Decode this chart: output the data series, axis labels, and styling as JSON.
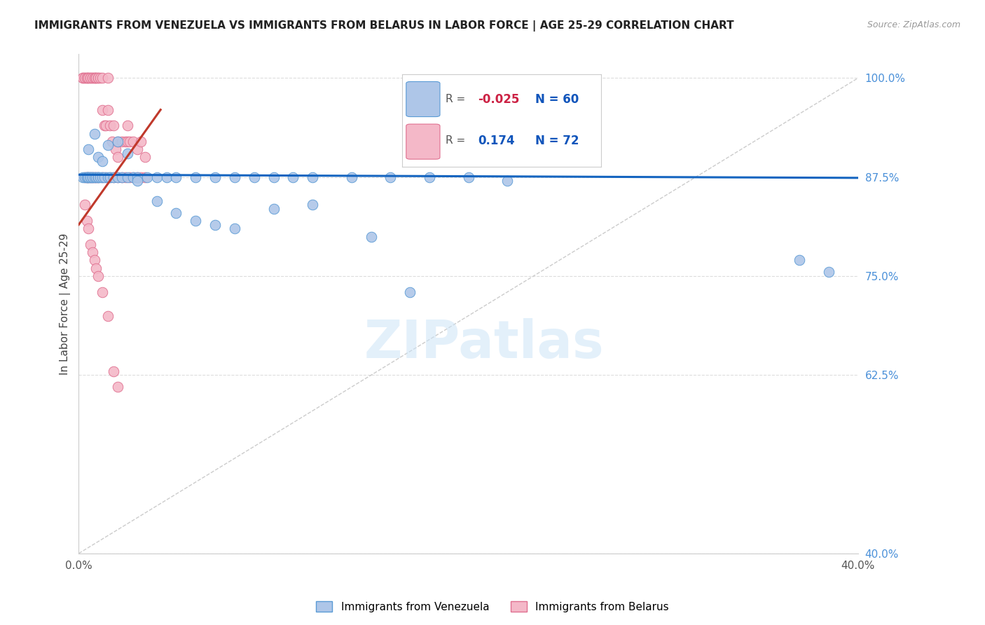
{
  "title": "IMMIGRANTS FROM VENEZUELA VS IMMIGRANTS FROM BELARUS IN LABOR FORCE | AGE 25-29 CORRELATION CHART",
  "source": "Source: ZipAtlas.com",
  "ylabel": "In Labor Force | Age 25-29",
  "xlim": [
    0.0,
    0.4
  ],
  "ylim": [
    0.4,
    1.03
  ],
  "plot_ylim": [
    0.4,
    1.03
  ],
  "xticks": [
    0.0,
    0.1,
    0.2,
    0.3,
    0.4
  ],
  "xtick_labels": [
    "0.0%",
    "",
    "",
    "",
    "40.0%"
  ],
  "yticks": [
    0.4,
    0.625,
    0.75,
    0.875,
    1.0
  ],
  "ytick_labels": [
    "40.0%",
    "62.5%",
    "75.0%",
    "87.5%",
    "100.0%"
  ],
  "watermark": "ZIPatlas",
  "venezuela_color": "#aec6e8",
  "venezuela_edge": "#5b9bd5",
  "belarus_color": "#f4b8c8",
  "belarus_edge": "#e07090",
  "blue_line_color": "#1565c0",
  "red_line_color": "#c0392b",
  "diagonal_color": "#cccccc",
  "grid_color": "#dddddd",
  "right_tick_color": "#4a90d9",
  "venezuela_x": [
    0.002,
    0.003,
    0.004,
    0.004,
    0.005,
    0.005,
    0.006,
    0.006,
    0.007,
    0.007,
    0.008,
    0.009,
    0.01,
    0.01,
    0.011,
    0.012,
    0.013,
    0.015,
    0.016,
    0.018,
    0.02,
    0.022,
    0.025,
    0.028,
    0.03,
    0.035,
    0.04,
    0.045,
    0.05,
    0.06,
    0.07,
    0.08,
    0.09,
    0.1,
    0.11,
    0.12,
    0.14,
    0.16,
    0.18,
    0.2,
    0.005,
    0.008,
    0.01,
    0.012,
    0.015,
    0.02,
    0.025,
    0.03,
    0.04,
    0.05,
    0.06,
    0.07,
    0.08,
    0.1,
    0.12,
    0.15,
    0.17,
    0.22,
    0.37,
    0.385
  ],
  "venezuela_y": [
    0.875,
    0.875,
    0.875,
    0.875,
    0.875,
    0.875,
    0.875,
    0.875,
    0.875,
    0.875,
    0.875,
    0.875,
    0.875,
    0.875,
    0.875,
    0.875,
    0.875,
    0.875,
    0.875,
    0.875,
    0.875,
    0.875,
    0.875,
    0.875,
    0.875,
    0.875,
    0.875,
    0.875,
    0.875,
    0.875,
    0.875,
    0.875,
    0.875,
    0.875,
    0.875,
    0.875,
    0.875,
    0.875,
    0.875,
    0.875,
    0.91,
    0.93,
    0.9,
    0.895,
    0.915,
    0.92,
    0.905,
    0.87,
    0.845,
    0.83,
    0.82,
    0.815,
    0.81,
    0.835,
    0.84,
    0.8,
    0.73,
    0.87,
    0.77,
    0.755
  ],
  "belarus_x": [
    0.002,
    0.002,
    0.003,
    0.003,
    0.004,
    0.004,
    0.005,
    0.005,
    0.006,
    0.006,
    0.007,
    0.007,
    0.008,
    0.008,
    0.009,
    0.009,
    0.01,
    0.01,
    0.011,
    0.012,
    0.012,
    0.013,
    0.014,
    0.015,
    0.015,
    0.016,
    0.017,
    0.018,
    0.019,
    0.02,
    0.02,
    0.022,
    0.024,
    0.025,
    0.025,
    0.026,
    0.028,
    0.03,
    0.032,
    0.034,
    0.003,
    0.004,
    0.005,
    0.006,
    0.007,
    0.008,
    0.009,
    0.01,
    0.012,
    0.014,
    0.016,
    0.018,
    0.02,
    0.022,
    0.024,
    0.026,
    0.028,
    0.03,
    0.032,
    0.034,
    0.003,
    0.004,
    0.005,
    0.006,
    0.007,
    0.008,
    0.009,
    0.01,
    0.012,
    0.015,
    0.018,
    0.02
  ],
  "belarus_y": [
    1.0,
    1.0,
    1.0,
    1.0,
    1.0,
    1.0,
    1.0,
    1.0,
    1.0,
    1.0,
    1.0,
    1.0,
    1.0,
    1.0,
    1.0,
    1.0,
    1.0,
    1.0,
    1.0,
    1.0,
    0.96,
    0.94,
    0.94,
    1.0,
    0.96,
    0.94,
    0.92,
    0.94,
    0.91,
    0.92,
    0.9,
    0.92,
    0.92,
    0.94,
    0.92,
    0.92,
    0.92,
    0.91,
    0.92,
    0.9,
    0.875,
    0.875,
    0.875,
    0.875,
    0.875,
    0.875,
    0.875,
    0.875,
    0.875,
    0.875,
    0.875,
    0.875,
    0.875,
    0.875,
    0.875,
    0.875,
    0.875,
    0.875,
    0.875,
    0.875,
    0.84,
    0.82,
    0.81,
    0.79,
    0.78,
    0.77,
    0.76,
    0.75,
    0.73,
    0.7,
    0.63,
    0.61
  ]
}
